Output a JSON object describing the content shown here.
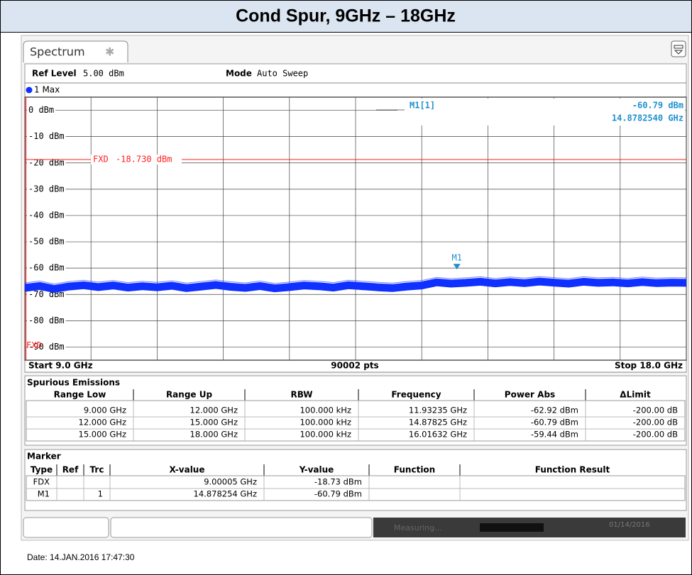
{
  "header": {
    "title": "Cond Spur, 9GHz – 18GHz"
  },
  "tab": "Spectrum",
  "settings": {
    "ref_level_label": "Ref Level",
    "ref_level": "5.00 dBm",
    "mode_label": "Mode",
    "mode": "Auto Sweep"
  },
  "chart_data": {
    "type": "line",
    "x": [
      9.0,
      9.2,
      9.4,
      9.6,
      9.8,
      10.0,
      10.2,
      10.4,
      10.6,
      10.8,
      11.0,
      11.2,
      11.4,
      11.6,
      11.8,
      12.0,
      12.2,
      12.4,
      12.6,
      12.8,
      13.0,
      13.2,
      13.4,
      13.6,
      13.8,
      14.0,
      14.2,
      14.4,
      14.6,
      14.8,
      15.0,
      15.2,
      15.4,
      15.6,
      15.8,
      16.0,
      16.2,
      16.4,
      16.6,
      16.8,
      17.0,
      17.2,
      17.4,
      17.6,
      17.8,
      18.0
    ],
    "series": [
      {
        "name": "1 Max",
        "color": "#1030ff",
        "values": [
          -67.5,
          -66.8,
          -67.9,
          -67.0,
          -66.5,
          -67.2,
          -66.6,
          -67.4,
          -66.9,
          -67.3,
          -66.7,
          -67.6,
          -67.0,
          -66.4,
          -67.1,
          -67.5,
          -66.8,
          -67.7,
          -67.2,
          -66.6,
          -66.9,
          -67.4,
          -66.5,
          -66.9,
          -67.3,
          -67.6,
          -67.0,
          -66.6,
          -65.4,
          -65.9,
          -65.6,
          -65.2,
          -65.8,
          -65.3,
          -65.7,
          -65.1,
          -65.5,
          -65.9,
          -65.2,
          -65.6,
          -65.4,
          -65.8,
          -65.3,
          -65.7,
          -65.5,
          -65.6
        ]
      }
    ],
    "xlim": [
      9.0,
      18.0
    ],
    "xticks": [
      9.0,
      9.9,
      10.8,
      11.7,
      12.6,
      13.5,
      14.4,
      15.3,
      16.2,
      17.1,
      18.0
    ],
    "ylim": [
      -95,
      5
    ],
    "yticks": [
      {
        "value": 0,
        "label": "0 dBm"
      },
      {
        "value": -10,
        "label": "-10 dBm"
      },
      {
        "value": -20,
        "label": "-20 dBm"
      },
      {
        "value": -30,
        "label": "-30 dBm"
      },
      {
        "value": -40,
        "label": "-40 dBm"
      },
      {
        "value": -50,
        "label": "-50 dBm"
      },
      {
        "value": -60,
        "label": "-60 dBm"
      },
      {
        "value": -70,
        "label": "-70 dBm"
      },
      {
        "value": -80,
        "label": "-80 dBm"
      },
      {
        "value": -90,
        "label": "-90 dBm"
      }
    ],
    "grid": true,
    "limit_line": {
      "label": "FXD",
      "value": -18.73,
      "value_label": "-18.730 dBm",
      "color": "#ff2020"
    },
    "marker": {
      "name": "M1",
      "x": 14.878254,
      "y": -60.79,
      "readout_name": "M1[1]",
      "readout_y": "-60.79 dBm",
      "readout_x": "14.8782540 GHz",
      "color": "#1e90d0"
    },
    "x_start_label": "Start 9.0 GHz",
    "points_label": "90002 pts",
    "x_stop_label": "Stop 18.0 GHz"
  },
  "spurious": {
    "title": "Spurious Emissions",
    "columns": [
      "Range Low",
      "Range Up",
      "RBW",
      "Frequency",
      "Power Abs",
      "ΔLimit"
    ],
    "rows": [
      [
        "9.000 GHz",
        "12.000 GHz",
        "100.000 kHz",
        "11.93235 GHz",
        "-62.92 dBm",
        "-200.00 dB"
      ],
      [
        "12.000 GHz",
        "15.000 GHz",
        "100.000 kHz",
        "14.87825 GHz",
        "-60.79 dBm",
        "-200.00 dB"
      ],
      [
        "15.000 GHz",
        "18.000 GHz",
        "100.000 kHz",
        "16.01632 GHz",
        "-59.44 dBm",
        "-200.00 dB"
      ]
    ]
  },
  "marker_table": {
    "title": "Marker",
    "columns": {
      "type": "Type",
      "ref": "Ref",
      "trc": "Trc",
      "x_value": "X-value",
      "y_value": "Y-value",
      "function": "Function",
      "function_result": "Function Result"
    },
    "rows": [
      {
        "type": "FDX",
        "x_value": "9.00005 GHz",
        "y_value": "-18.73 dBm"
      },
      {
        "type": "M1",
        "trc": "1",
        "x_value": "14.878254 GHz",
        "y_value": "-60.79 dBm"
      }
    ]
  },
  "status": {
    "state": "Measuring...",
    "date": "01/14/2016"
  },
  "footer": "Date: 14.JAN.2016 17:47:30"
}
